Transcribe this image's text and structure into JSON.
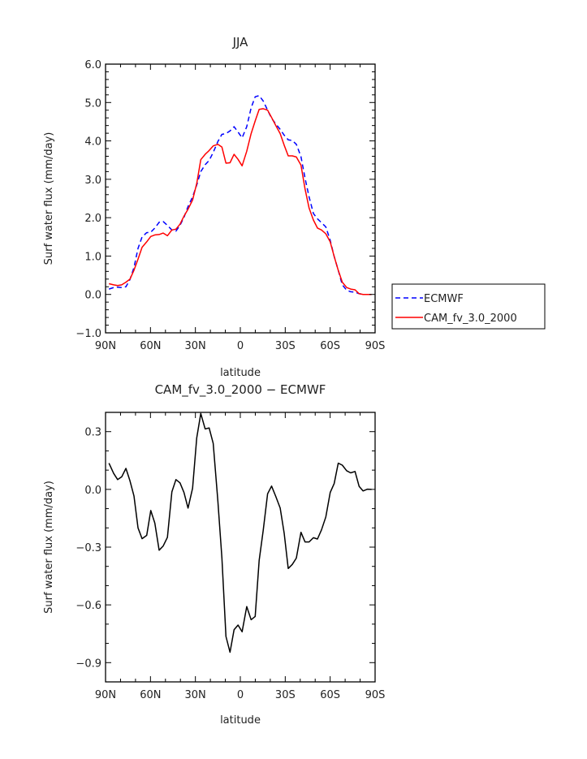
{
  "chart_data": [
    {
      "type": "line",
      "title": "JJA",
      "xlabel": "latitude",
      "ylabel": "Surf water flux (mm/day)",
      "xlim": [
        90,
        -90
      ],
      "ylim": [
        -1.0,
        6.0
      ],
      "xticks": [
        90,
        60,
        30,
        0,
        -30,
        -60,
        -90
      ],
      "xtick_labels": [
        "90N",
        "60N",
        "30N",
        "0",
        "30S",
        "60S",
        "90S"
      ],
      "yticks": [
        6,
        5,
        4,
        3,
        2,
        1,
        0,
        -1
      ],
      "ytick_labels": [
        "6.0",
        "5.0",
        "4.0",
        "3.0",
        "2.0",
        "1.0",
        "0.0",
        "−1.0"
      ],
      "legend_placement": "outside-right",
      "x": [
        87.7,
        84.6,
        81.9,
        79.2,
        76.4,
        73.7,
        71.0,
        68.3,
        65.6,
        62.5,
        59.8,
        57.1,
        54.2,
        51.5,
        48.7,
        45.7,
        43.0,
        40.3,
        37.6,
        34.9,
        31.9,
        29.1,
        26.4,
        23.5,
        20.8,
        18.1,
        15.0,
        12.3,
        9.6,
        6.9,
        4.2,
        1.5,
        -1.2,
        -4.3,
        -7.2,
        -9.9,
        -12.6,
        -15.3,
        -18.2,
        -20.9,
        -23.7,
        -26.6,
        -29.3,
        -32.0,
        -34.7,
        -37.4,
        -40.5,
        -43.2,
        -45.9,
        -48.8,
        -51.5,
        -54.2,
        -57.1,
        -60.0,
        -62.7,
        -65.4,
        -68.1,
        -71.0,
        -73.7,
        -76.6,
        -79.3,
        -82.0,
        -84.9,
        -87.6
      ],
      "series": [
        {
          "name": "ECMWF",
          "color": "#0000ff",
          "style": "dashed",
          "values": [
            0.14,
            0.18,
            0.19,
            0.18,
            0.2,
            0.39,
            0.7,
            1.2,
            1.5,
            1.61,
            1.62,
            1.73,
            1.88,
            1.9,
            1.8,
            1.68,
            1.65,
            1.8,
            2.01,
            2.29,
            2.54,
            2.85,
            3.2,
            3.38,
            3.49,
            3.7,
            3.98,
            4.17,
            4.19,
            4.26,
            4.37,
            4.23,
            4.08,
            4.37,
            4.86,
            5.15,
            5.18,
            5.04,
            4.8,
            4.59,
            4.44,
            4.3,
            4.15,
            4.03,
            4.01,
            3.91,
            3.59,
            3.03,
            2.54,
            2.11,
            1.97,
            1.87,
            1.76,
            1.41,
            0.99,
            0.63,
            0.25,
            0.11,
            0.07,
            0.06,
            0.02,
            0.0,
            0.0,
            0.0
          ]
        },
        {
          "name": "CAM_fv_3.0_2000",
          "color": "#ff0000",
          "style": "solid",
          "values": [
            0.28,
            0.25,
            0.23,
            0.25,
            0.32,
            0.4,
            0.63,
            0.92,
            1.23,
            1.37,
            1.51,
            1.55,
            1.56,
            1.6,
            1.53,
            1.68,
            1.7,
            1.83,
            2.04,
            2.22,
            2.46,
            2.89,
            3.51,
            3.65,
            3.75,
            3.87,
            3.91,
            3.84,
            3.42,
            3.43,
            3.65,
            3.52,
            3.35,
            3.73,
            4.19,
            4.52,
            4.82,
            4.84,
            4.8,
            4.61,
            4.4,
            4.19,
            3.89,
            3.61,
            3.61,
            3.58,
            3.37,
            2.75,
            2.25,
            1.94,
            1.73,
            1.68,
            1.58,
            1.37,
            0.99,
            0.63,
            0.32,
            0.18,
            0.14,
            0.12,
            0.02,
            0.0,
            0.0,
            0.0
          ]
        }
      ]
    },
    {
      "type": "line",
      "title": "CAM_fv_3.0_2000 − ECMWF",
      "xlabel": "latitude",
      "ylabel": "Surf water flux (mm/day)",
      "xlim": [
        90,
        -90
      ],
      "ylim": [
        -1.0,
        0.4
      ],
      "xticks": [
        90,
        60,
        30,
        0,
        -30,
        -60,
        -90
      ],
      "xtick_labels": [
        "90N",
        "60N",
        "30N",
        "0",
        "30S",
        "60S",
        "90S"
      ],
      "yticks": [
        0.3,
        0.0,
        -0.3,
        -0.6,
        -0.9
      ],
      "ytick_labels": [
        "0.3",
        "0.0",
        "−0.3",
        "−0.6",
        "−0.9"
      ],
      "x": [
        87.7,
        84.6,
        81.9,
        79.2,
        76.4,
        73.7,
        71.0,
        68.3,
        65.6,
        62.5,
        59.8,
        57.1,
        54.2,
        51.5,
        48.7,
        45.7,
        43.0,
        40.3,
        37.6,
        34.9,
        31.9,
        29.1,
        26.4,
        23.5,
        20.8,
        18.1,
        15.0,
        12.3,
        9.6,
        6.9,
        4.2,
        1.5,
        -1.2,
        -4.3,
        -7.2,
        -9.9,
        -12.6,
        -15.3,
        -18.2,
        -20.9,
        -23.7,
        -26.6,
        -29.3,
        -32.0,
        -34.7,
        -37.4,
        -40.5,
        -43.2,
        -45.9,
        -48.8,
        -51.5,
        -54.2,
        -57.1,
        -60.0,
        -62.7,
        -65.4,
        -68.1,
        -71.0,
        -73.7,
        -76.6,
        -79.3,
        -82.0,
        -84.9,
        -87.6
      ],
      "series": [
        {
          "name": "CAM_fv_3.0_2000 - ECMWF",
          "color": "#000000",
          "style": "solid",
          "values": [
            0.136,
            0.083,
            0.051,
            0.065,
            0.109,
            0.044,
            -0.034,
            -0.2,
            -0.256,
            -0.239,
            -0.11,
            -0.175,
            -0.316,
            -0.294,
            -0.249,
            -0.013,
            0.051,
            0.034,
            -0.016,
            -0.097,
            0.006,
            0.267,
            0.394,
            0.314,
            0.319,
            0.239,
            -0.058,
            -0.355,
            -0.764,
            -0.846,
            -0.729,
            -0.705,
            -0.74,
            -0.609,
            -0.677,
            -0.66,
            -0.369,
            -0.213,
            -0.023,
            0.017,
            -0.037,
            -0.097,
            -0.227,
            -0.411,
            -0.39,
            -0.357,
            -0.223,
            -0.273,
            -0.273,
            -0.251,
            -0.258,
            -0.21,
            -0.143,
            -0.016,
            0.03,
            0.136,
            0.126,
            0.097,
            0.086,
            0.093,
            0.016,
            -0.008,
            0.001,
            0.0
          ]
        }
      ]
    }
  ]
}
